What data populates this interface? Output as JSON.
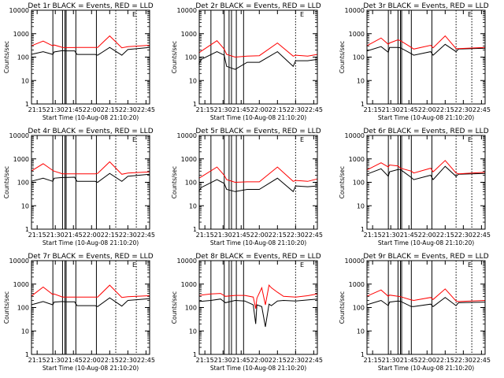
{
  "figure": {
    "background": "#ffffff",
    "colors": {
      "events": "#000000",
      "lld": "#ff0000",
      "axes": "#000000"
    }
  },
  "chart_data": [
    {
      "type": "line",
      "title": "Det 1r BLACK = Events, RED = LLD",
      "xlabel": "Start Time (10-Aug-08 21:10:20)",
      "ylabel": "Counts/sec",
      "y_scale": "log",
      "ylim": [
        1,
        10000
      ],
      "xlim": [
        "21:10:20",
        "22:48:00"
      ],
      "x_ticks": [
        "21:15",
        "21:30",
        "21:45",
        "22:00",
        "22:15",
        "22:30",
        "22:45"
      ],
      "y_ticks": [
        "1",
        "10",
        "100",
        "1000",
        "10000"
      ],
      "solid_markers": [
        "21:28",
        "21:36",
        "21:38",
        "21:39",
        "21:47",
        "22:04"
      ],
      "dotted_markers": [
        "22:20",
        "22:37"
      ],
      "corner_label": "E",
      "series": [
        {
          "name": "Events",
          "color": "#000000",
          "x": [
            "21:10",
            "21:20",
            "21:28",
            "21:29",
            "21:36",
            "21:38",
            "21:46",
            "21:48",
            "22:03",
            "22:05",
            "22:15",
            "22:25",
            "22:30",
            "22:48"
          ],
          "values": [
            130,
            170,
            130,
            165,
            190,
            185,
            185,
            130,
            130,
            120,
            260,
            120,
            210,
            260
          ]
        },
        {
          "name": "LLD",
          "color": "#ff0000",
          "x": [
            "21:10",
            "21:20",
            "21:28",
            "21:29",
            "21:36",
            "21:38",
            "21:46",
            "21:48",
            "22:03",
            "22:05",
            "22:15",
            "22:25",
            "22:30",
            "22:48"
          ],
          "values": [
            300,
            480,
            300,
            330,
            260,
            255,
            255,
            260,
            260,
            260,
            800,
            250,
            280,
            320
          ]
        }
      ]
    },
    {
      "type": "line",
      "title": "Det 2r BLACK = Events, RED = LLD",
      "xlabel": "Start Time (10-Aug-08 21:10:20)",
      "ylabel": "Counts/sec",
      "y_scale": "log",
      "ylim": [
        1,
        10000
      ],
      "xlim": [
        "21:10:20",
        "22:48:00"
      ],
      "x_ticks": [
        "21:15",
        "21:30",
        "21:45",
        "22:00",
        "22:15",
        "22:30",
        "22:45"
      ],
      "y_ticks": [
        "1",
        "10",
        "100",
        "1000",
        "10000"
      ],
      "solid_markers": [
        "21:20",
        "21:31",
        "21:35",
        "21:37",
        "21:41",
        "21:47"
      ],
      "dotted_markers": [
        "22:30"
      ],
      "corner_label": "E",
      "series": [
        {
          "name": "Events",
          "color": "#000000",
          "x": [
            "21:10",
            "21:12",
            "21:25",
            "21:31",
            "21:33",
            "21:40",
            "21:50",
            "22:00",
            "22:15",
            "22:28",
            "22:30",
            "22:40",
            "22:48"
          ],
          "values": [
            50,
            80,
            170,
            120,
            40,
            30,
            60,
            60,
            170,
            40,
            70,
            70,
            80
          ]
        },
        {
          "name": "LLD",
          "color": "#ff0000",
          "x": [
            "21:10",
            "21:12",
            "21:25",
            "21:31",
            "21:33",
            "21:40",
            "21:50",
            "22:00",
            "22:15",
            "22:28",
            "22:30",
            "22:40",
            "22:48"
          ],
          "values": [
            150,
            180,
            500,
            220,
            130,
            100,
            110,
            115,
            400,
            110,
            120,
            110,
            130
          ]
        }
      ]
    },
    {
      "type": "line",
      "title": "Det 3r BLACK = Events, RED = LLD",
      "xlabel": "Start Time (10-Aug-08 21:10:20)",
      "ylabel": "Counts/sec",
      "y_scale": "log",
      "ylim": [
        1,
        10000
      ],
      "xlim": [
        "21:10:20",
        "22:48:00"
      ],
      "x_ticks": [
        "21:15",
        "21:30",
        "21:45",
        "22:00",
        "22:15",
        "22:30",
        "22:45"
      ],
      "y_ticks": [
        "1",
        "10",
        "100",
        "1000",
        "10000"
      ],
      "solid_markers": [
        "21:28",
        "21:36",
        "21:38",
        "21:39",
        "21:47",
        "22:04"
      ],
      "dotted_markers": [
        "22:24",
        "22:37"
      ],
      "corner_label": "E",
      "series": [
        {
          "name": "Events",
          "color": "#000000",
          "x": [
            "21:10",
            "21:22",
            "21:28",
            "21:29",
            "21:36",
            "21:38",
            "21:47",
            "21:49",
            "22:03",
            "22:05",
            "22:15",
            "22:24",
            "22:26",
            "22:48"
          ],
          "values": [
            180,
            280,
            160,
            260,
            260,
            250,
            140,
            120,
            170,
            120,
            350,
            170,
            220,
            240
          ]
        },
        {
          "name": "LLD",
          "color": "#ff0000",
          "x": [
            "21:10",
            "21:22",
            "21:28",
            "21:29",
            "21:36",
            "21:38",
            "21:47",
            "21:49",
            "22:03",
            "22:05",
            "22:15",
            "22:24",
            "22:26",
            "22:48"
          ],
          "values": [
            300,
            650,
            350,
            400,
            550,
            500,
            260,
            220,
            320,
            250,
            800,
            230,
            230,
            260
          ]
        }
      ]
    },
    {
      "type": "line",
      "title": "Det 4r BLACK = Events, RED = LLD",
      "xlabel": "Start Time (10-Aug-08 21:10:20)",
      "ylabel": "Counts/sec",
      "y_scale": "log",
      "ylim": [
        1,
        10000
      ],
      "xlim": [
        "21:10:20",
        "22:48:00"
      ],
      "x_ticks": [
        "21:15",
        "21:30",
        "21:45",
        "22:00",
        "22:15",
        "22:30",
        "22:45"
      ],
      "y_ticks": [
        "1",
        "10",
        "100",
        "1000",
        "10000"
      ],
      "solid_markers": [
        "21:28",
        "21:36",
        "21:38",
        "21:39",
        "21:47",
        "22:04"
      ],
      "dotted_markers": [
        "22:20",
        "22:37"
      ],
      "corner_label": "E",
      "series": [
        {
          "name": "Events",
          "color": "#000000",
          "x": [
            "21:10",
            "21:20",
            "21:28",
            "21:29",
            "21:36",
            "21:38",
            "21:46",
            "21:48",
            "22:03",
            "22:05",
            "22:15",
            "22:25",
            "22:30",
            "22:48"
          ],
          "values": [
            110,
            150,
            110,
            150,
            160,
            160,
            165,
            110,
            110,
            100,
            240,
            110,
            180,
            220
          ]
        },
        {
          "name": "LLD",
          "color": "#ff0000",
          "x": [
            "21:10",
            "21:20",
            "21:28",
            "21:29",
            "21:36",
            "21:38",
            "21:46",
            "21:48",
            "22:03",
            "22:05",
            "22:15",
            "22:25",
            "22:30",
            "22:48"
          ],
          "values": [
            300,
            620,
            320,
            300,
            230,
            230,
            230,
            230,
            230,
            240,
            750,
            220,
            250,
            280
          ]
        }
      ]
    },
    {
      "type": "line",
      "title": "Det 5r BLACK = Events, RED = LLD",
      "xlabel": "Start Time (10-Aug-08 21:10:20)",
      "ylabel": "Counts/sec",
      "y_scale": "log",
      "ylim": [
        1,
        10000
      ],
      "xlim": [
        "21:10:20",
        "22:48:00"
      ],
      "x_ticks": [
        "21:15",
        "21:30",
        "21:45",
        "22:00",
        "22:15",
        "22:30",
        "22:45"
      ],
      "y_ticks": [
        "1",
        "10",
        "100",
        "1000",
        "10000"
      ],
      "solid_markers": [
        "21:20",
        "21:31",
        "21:35",
        "21:37",
        "21:41",
        "21:47"
      ],
      "dotted_markers": [
        "22:30"
      ],
      "corner_label": "E",
      "series": [
        {
          "name": "Events",
          "color": "#000000",
          "x": [
            "21:10",
            "21:12",
            "21:25",
            "21:31",
            "21:33",
            "21:40",
            "21:50",
            "22:00",
            "22:15",
            "22:28",
            "22:30",
            "22:40",
            "22:48"
          ],
          "values": [
            40,
            60,
            130,
            90,
            50,
            40,
            50,
            50,
            150,
            40,
            70,
            65,
            70
          ]
        },
        {
          "name": "LLD",
          "color": "#ff0000",
          "x": [
            "21:10",
            "21:12",
            "21:25",
            "21:31",
            "21:33",
            "21:40",
            "21:50",
            "22:00",
            "22:15",
            "22:28",
            "22:30",
            "22:40",
            "22:48"
          ],
          "values": [
            150,
            170,
            450,
            200,
            130,
            100,
            105,
            105,
            450,
            110,
            120,
            110,
            140
          ]
        }
      ]
    },
    {
      "type": "line",
      "title": "Det 6r BLACK = Events, RED = LLD",
      "xlabel": "Start Time (10-Aug-08 21:10:20)",
      "ylabel": "Counts/sec",
      "y_scale": "log",
      "ylim": [
        1,
        10000
      ],
      "xlim": [
        "21:10:20",
        "22:48:00"
      ],
      "x_ticks": [
        "21:15",
        "21:30",
        "21:45",
        "22:00",
        "22:15",
        "22:30",
        "22:45"
      ],
      "y_ticks": [
        "1",
        "10",
        "100",
        "1000",
        "10000"
      ],
      "solid_markers": [
        "21:28",
        "21:36",
        "21:38",
        "21:39",
        "21:47",
        "22:04"
      ],
      "dotted_markers": [
        "22:24",
        "22:37"
      ],
      "corner_label": "E",
      "series": [
        {
          "name": "Events",
          "color": "#000000",
          "x": [
            "21:10",
            "21:22",
            "21:28",
            "21:29",
            "21:36",
            "21:38",
            "21:47",
            "21:49",
            "22:03",
            "22:05",
            "22:15",
            "22:24",
            "22:26",
            "22:48"
          ],
          "values": [
            220,
            380,
            180,
            280,
            350,
            350,
            160,
            130,
            200,
            130,
            480,
            180,
            220,
            240
          ]
        },
        {
          "name": "LLD",
          "color": "#ff0000",
          "x": [
            "21:10",
            "21:22",
            "21:28",
            "21:29",
            "21:36",
            "21:38",
            "21:47",
            "21:49",
            "22:03",
            "22:05",
            "22:15",
            "22:24",
            "22:26",
            "22:48"
          ],
          "values": [
            330,
            680,
            450,
            550,
            500,
            400,
            300,
            250,
            400,
            280,
            850,
            250,
            230,
            270
          ]
        }
      ]
    },
    {
      "type": "line",
      "title": "Det 7r BLACK = Events, RED = LLD",
      "xlabel": "Start Time (10-Aug-08 21:10:20)",
      "ylabel": "Counts/sec",
      "y_scale": "log",
      "ylim": [
        1,
        10000
      ],
      "xlim": [
        "21:10:20",
        "22:48:00"
      ],
      "x_ticks": [
        "21:15",
        "21:30",
        "21:45",
        "22:00",
        "22:15",
        "22:30",
        "22:45"
      ],
      "y_ticks": [
        "1",
        "10",
        "100",
        "1000",
        "10000"
      ],
      "solid_markers": [
        "21:28",
        "21:36",
        "21:38",
        "21:39",
        "21:47",
        "22:04"
      ],
      "dotted_markers": [
        "22:20",
        "22:37"
      ],
      "corner_label": "E",
      "series": [
        {
          "name": "Events",
          "color": "#000000",
          "x": [
            "21:10",
            "21:20",
            "21:28",
            "21:29",
            "21:36",
            "21:38",
            "21:46",
            "21:48",
            "22:03",
            "22:05",
            "22:15",
            "22:25",
            "22:30",
            "22:48"
          ],
          "values": [
            130,
            180,
            130,
            170,
            180,
            175,
            175,
            120,
            120,
            110,
            260,
            115,
            200,
            240
          ]
        },
        {
          "name": "LLD",
          "color": "#ff0000",
          "x": [
            "21:10",
            "21:20",
            "21:28",
            "21:29",
            "21:36",
            "21:38",
            "21:46",
            "21:48",
            "22:03",
            "22:05",
            "22:15",
            "22:25",
            "22:30",
            "22:48"
          ],
          "values": [
            300,
            750,
            360,
            380,
            280,
            280,
            280,
            280,
            280,
            280,
            900,
            270,
            290,
            320
          ]
        }
      ]
    },
    {
      "type": "line",
      "title": "Det 8r BLACK = Events, RED = LLD",
      "xlabel": "Start Time (10-Aug-08 21:10:20)",
      "ylabel": "Counts/sec",
      "y_scale": "log",
      "ylim": [
        1,
        10000
      ],
      "xlim": [
        "21:10:20",
        "22:48:00"
      ],
      "x_ticks": [
        "21:15",
        "21:30",
        "21:45",
        "22:00",
        "22:15",
        "22:30",
        "22:45"
      ],
      "y_ticks": [
        "1",
        "10",
        "100",
        "1000",
        "10000"
      ],
      "solid_markers": [
        "21:20",
        "21:31",
        "21:35",
        "21:37",
        "21:41",
        "21:47"
      ],
      "dotted_markers": [
        "22:30"
      ],
      "corner_label": "E",
      "series": [
        {
          "name": "Events",
          "color": "#000000",
          "x": [
            "21:10",
            "21:20",
            "21:28",
            "21:32",
            "21:40",
            "21:48",
            "21:55",
            "21:57",
            "21:58",
            "22:02",
            "22:05",
            "22:08",
            "22:10",
            "22:15",
            "22:20",
            "22:30",
            "22:40",
            "22:48"
          ],
          "values": [
            180,
            200,
            230,
            160,
            200,
            190,
            130,
            20,
            130,
            110,
            15,
            140,
            120,
            190,
            200,
            190,
            210,
            230
          ]
        },
        {
          "name": "LLD",
          "color": "#ff0000",
          "x": [
            "21:10",
            "21:20",
            "21:28",
            "21:32",
            "21:40",
            "21:48",
            "21:55",
            "21:57",
            "21:58",
            "22:02",
            "22:05",
            "22:08",
            "22:10",
            "22:15",
            "22:20",
            "22:30",
            "22:40",
            "22:48"
          ],
          "values": [
            330,
            380,
            400,
            300,
            330,
            330,
            280,
            90,
            250,
            700,
            130,
            900,
            700,
            450,
            300,
            280,
            320,
            380
          ]
        }
      ]
    },
    {
      "type": "line",
      "title": "Det 9r BLACK = Events, RED = LLD",
      "xlabel": "Start Time (10-Aug-08 21:10:20)",
      "ylabel": "Counts/sec",
      "y_scale": "log",
      "ylim": [
        1,
        10000
      ],
      "xlim": [
        "21:10:20",
        "22:48:00"
      ],
      "x_ticks": [
        "21:15",
        "21:30",
        "21:45",
        "22:00",
        "22:15",
        "22:30",
        "22:45"
      ],
      "y_ticks": [
        "1",
        "10",
        "100",
        "1000",
        "10000"
      ],
      "solid_markers": [
        "21:28",
        "21:36",
        "21:38",
        "21:39",
        "21:47",
        "22:04"
      ],
      "dotted_markers": [
        "22:24",
        "22:37"
      ],
      "corner_label": "E",
      "series": [
        {
          "name": "Events",
          "color": "#000000",
          "x": [
            "21:10",
            "21:22",
            "21:28",
            "21:29",
            "21:36",
            "21:38",
            "21:47",
            "21:49",
            "22:03",
            "22:05",
            "22:15",
            "22:24",
            "22:26",
            "22:48"
          ],
          "values": [
            130,
            200,
            120,
            170,
            190,
            185,
            110,
            110,
            140,
            110,
            270,
            120,
            160,
            170
          ]
        },
        {
          "name": "LLD",
          "color": "#ff0000",
          "x": [
            "21:10",
            "21:22",
            "21:28",
            "21:29",
            "21:36",
            "21:38",
            "21:47",
            "21:49",
            "22:03",
            "22:05",
            "22:15",
            "22:24",
            "22:26",
            "22:48"
          ],
          "values": [
            300,
            560,
            300,
            340,
            300,
            290,
            210,
            200,
            270,
            220,
            620,
            190,
            180,
            200
          ]
        }
      ]
    }
  ]
}
